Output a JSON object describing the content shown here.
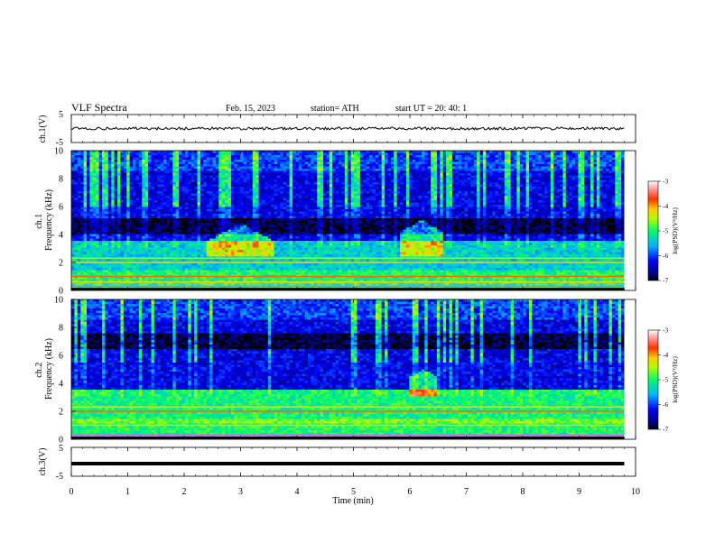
{
  "header": {
    "title": "VLF  Spectra",
    "date": "Feb. 15, 2023",
    "station": "station= ATH",
    "start_ut": "start  UT  =    20: 40: 1"
  },
  "chart_data": [
    {
      "type": "line",
      "id": "ch1-waveform",
      "ylabel": "ch.1(V)",
      "ylim": [
        -5,
        5
      ],
      "yticks": [
        "5",
        "-5"
      ],
      "x_range_min": [
        0,
        9.8
      ],
      "approx_level": 0,
      "approx_amplitude": 0.5
    },
    {
      "type": "heatmap",
      "id": "ch1-spectrogram",
      "ylabel": "ch.1\nFrequency (kHz)",
      "ylim_khz": [
        0,
        10
      ],
      "yticks": [
        "0",
        "2",
        "4",
        "6",
        "8",
        "10"
      ],
      "x_range_min": [
        0,
        9.8
      ],
      "colorbar": {
        "label": "log(PSD)(V²/Hz)",
        "range": [
          -7,
          -3
        ],
        "ticks": [
          "-3",
          "-4",
          "-5",
          "-6",
          "-7"
        ]
      },
      "features": [
        {
          "name": "intense narrowband lines",
          "freq_khz": [
            0.3,
            0.6,
            1.0,
            2.0,
            2.3
          ]
        },
        {
          "name": "hiss burst",
          "time_min": [
            2.4,
            3.6
          ],
          "freq_khz": [
            2.5,
            4.8
          ]
        },
        {
          "name": "hiss burst",
          "time_min": [
            5.8,
            6.6
          ],
          "freq_khz": [
            2.5,
            5.0
          ]
        },
        {
          "name": "low-PSD band",
          "freq_khz": [
            4.0,
            5.2
          ]
        }
      ]
    },
    {
      "type": "heatmap",
      "id": "ch2-spectrogram",
      "ylabel": "ch.2\nFrequency (kHz)",
      "ylim_khz": [
        0,
        10
      ],
      "yticks": [
        "0",
        "2",
        "4",
        "6",
        "8",
        "10"
      ],
      "x_range_min": [
        0,
        9.8
      ],
      "colorbar": {
        "label": "log(PSD)(V²/Hz)",
        "range": [
          -7,
          -3
        ],
        "ticks": [
          "-3",
          "-4",
          "-5",
          "-6",
          "-7"
        ]
      },
      "features": [
        {
          "name": "intense narrowband lines",
          "freq_khz": [
            0.3,
            1.0,
            2.0,
            2.3
          ]
        },
        {
          "name": "hiss burst",
          "time_min": [
            6.0,
            6.5
          ],
          "freq_khz": [
            3.0,
            5.0
          ]
        },
        {
          "name": "low-PSD band",
          "freq_khz": [
            6.5,
            7.5
          ]
        }
      ]
    },
    {
      "type": "line",
      "id": "ch3-waveform",
      "ylabel": "ch.3(V)",
      "ylim": [
        -5,
        5
      ],
      "yticks": [
        "5",
        "-5"
      ],
      "x_range_min": [
        0,
        9.8
      ],
      "approx_level": 0
    }
  ],
  "xaxis": {
    "label": "Time  (min)",
    "ticks": [
      "0",
      "1",
      "2",
      "3",
      "4",
      "5",
      "6",
      "7",
      "8",
      "9",
      "10"
    ],
    "range": [
      0,
      10
    ]
  }
}
